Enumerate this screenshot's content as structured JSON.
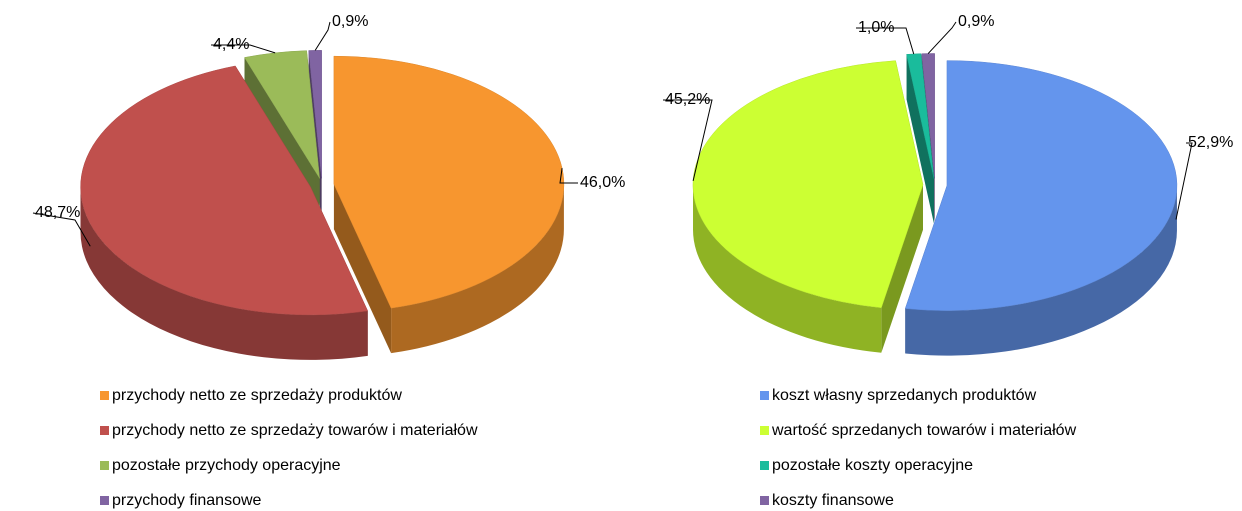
{
  "chart_data": [
    {
      "type": "pie",
      "categories": [
        "przychody netto ze sprzedaży produktów",
        "przychody netto ze sprzedaży towarów i materiałów",
        "pozostałe przychody operacyjne",
        "przychody finansowe"
      ],
      "values": [
        46.0,
        48.7,
        4.4,
        0.9
      ],
      "value_labels": [
        "46,0%",
        "48,7%",
        "4,4%",
        "0,9%"
      ],
      "colors": [
        "#f7962f",
        "#c0504d",
        "#9bbb59",
        "#8064a2"
      ]
    },
    {
      "type": "pie",
      "categories": [
        "koszt własny sprzedanych produktów",
        "wartość sprzedanych towarów i materiałów",
        "pozostałe koszty operacyjne",
        "koszty finansowe"
      ],
      "values": [
        52.9,
        45.2,
        1.0,
        0.9
      ],
      "value_labels": [
        "52,9%",
        "45,2%",
        "1,0%",
        "0,9%"
      ],
      "colors": [
        "#6495ed",
        "#ccff33",
        "#1abc9c",
        "#8064a2"
      ]
    }
  ]
}
